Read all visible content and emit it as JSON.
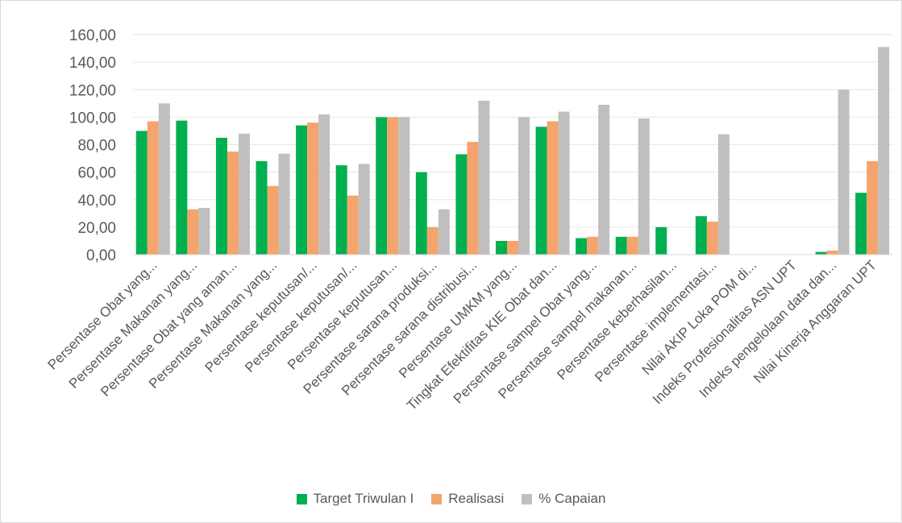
{
  "chart_data": {
    "type": "bar",
    "title": "",
    "xlabel": "",
    "ylabel": "",
    "ylim": [
      0,
      160
    ],
    "ytick_labels": [
      "0,00",
      "20,00",
      "40,00",
      "60,00",
      "80,00",
      "100,00",
      "120,00",
      "140,00",
      "160,00"
    ],
    "grid": true,
    "legend_position": "bottom",
    "categories": [
      "Persentase Obat yang...",
      "Persentase Makanan yang...",
      "Persentase Obat yang aman...",
      "Persentase Makanan yang...",
      "Persentase keputusan/...",
      "Persentase keputusan/...",
      "Persentase keputusan...",
      "Persentase sarana produksi...",
      "Persentase sarana distribusi...",
      "Persentase UMKM yang...",
      "Tingkat Efektifitas KIE Obat dan...",
      "Persentase sampel Obat yang...",
      "Persentase sampel makanan...",
      "Persentase keberhasilan...",
      "Persentase implementasi...",
      "Nilai AKIP Loka POM di...",
      "Indeks Profesionalitas ASN UPT",
      "Indeks pengelolaan data dan...",
      "Nilai Kinerja Anggaran UPT"
    ],
    "series": [
      {
        "name": "Target Triwulan I",
        "color": "#00b050",
        "values": [
          90,
          97.5,
          85,
          68,
          94,
          65,
          100,
          60,
          73,
          10,
          93,
          12,
          13,
          20,
          28,
          0,
          0,
          2,
          45
        ]
      },
      {
        "name": "Realisasi",
        "color": "#f4a46c",
        "values": [
          97,
          33,
          75,
          50,
          96,
          43,
          100,
          20,
          82,
          10,
          97,
          13,
          13,
          0,
          24,
          0,
          0,
          3,
          68
        ]
      },
      {
        "name": "% Capaian",
        "color": "#bfbfbf",
        "values": [
          110,
          34,
          88,
          73.5,
          102,
          66,
          100,
          33,
          112,
          100,
          104,
          109,
          99,
          0,
          87.5,
          0,
          0,
          120,
          151
        ]
      }
    ]
  }
}
